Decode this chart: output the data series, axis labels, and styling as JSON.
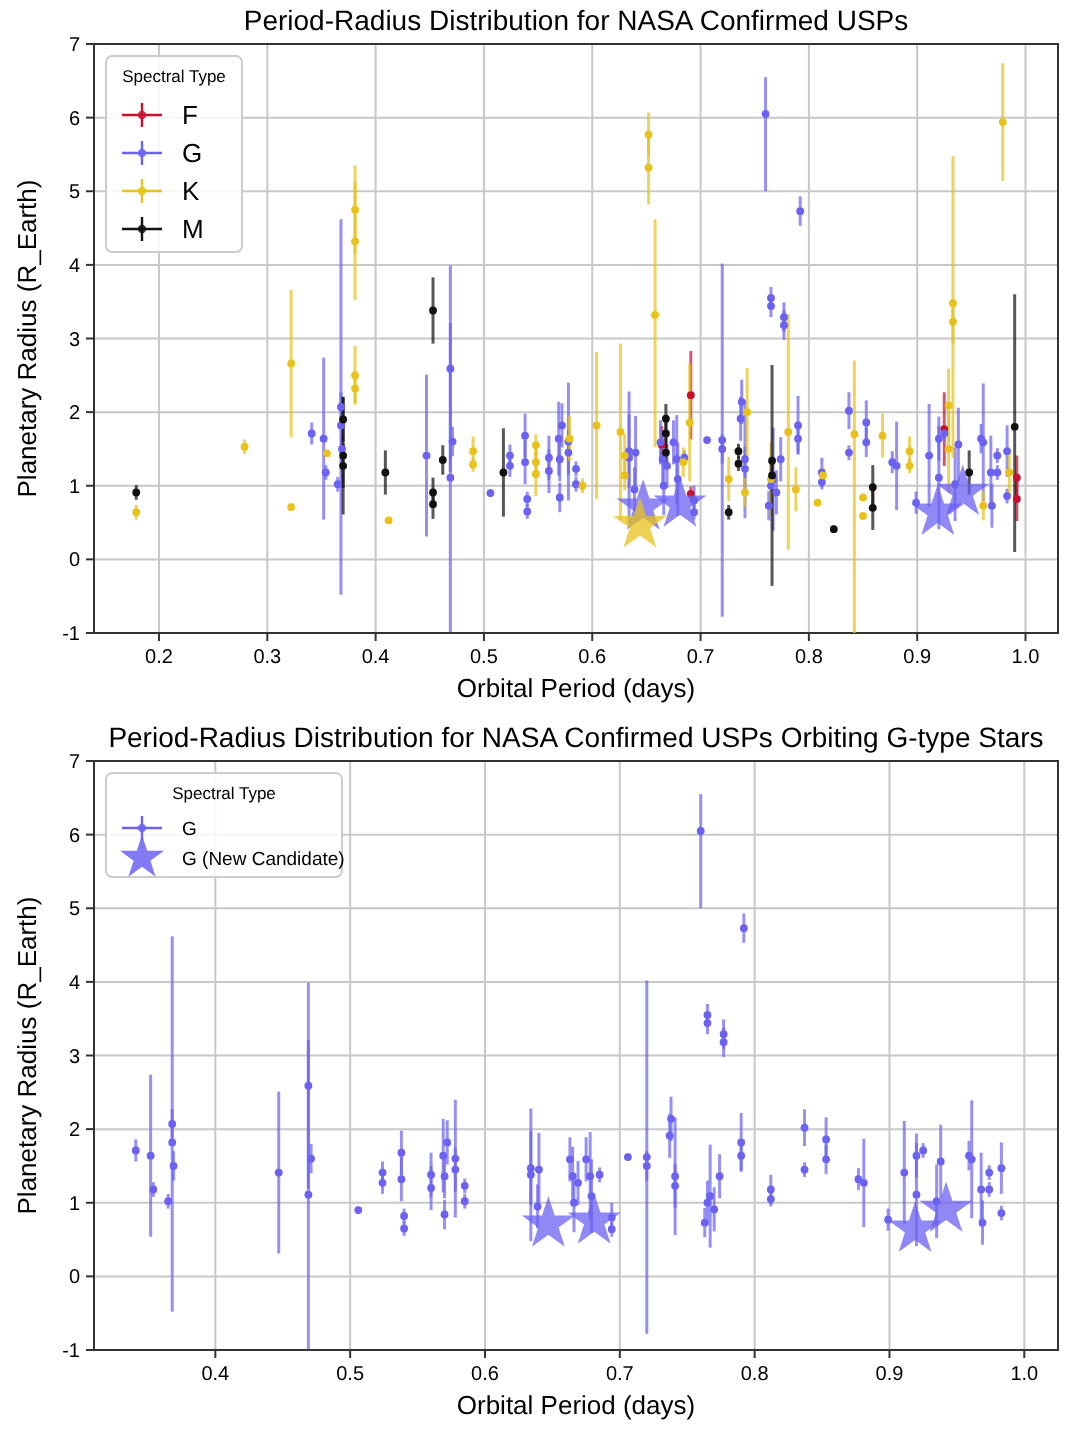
{
  "chart_data": [
    {
      "type": "scatter",
      "title": "Period-Radius Distribution for NASA Confirmed USPs",
      "xlabel": "Orbital Period (days)",
      "ylabel": "Planetary Radius (R_Earth)",
      "legend_title": "Spectral Type",
      "legend": "top left",
      "grid": true,
      "xlim": [
        0.14,
        1.03
      ],
      "xticks": [
        0.2,
        0.3,
        0.4,
        0.5,
        0.6,
        0.7,
        0.8,
        0.9,
        {
          "value": 1.0,
          "label": "1.0"
        }
      ],
      "ylim": [
        -1,
        7
      ],
      "yticks": [
        -1,
        0,
        1,
        2,
        3,
        4,
        5,
        6,
        7
      ],
      "series": [
        {
          "name": "F",
          "color": "#c8102e",
          "marker": "circle",
          "x": [
            0.664,
            0.691,
            0.691,
            0.925,
            0.992,
            0.992
          ],
          "values": [
            1.56,
            2.23,
            0.89,
            1.77,
            1.11,
            0.82
          ],
          "errors": [
            0.25,
            0.6,
            0.1,
            0.5,
            0.3,
            0.3
          ]
        },
        {
          "name": "G",
          "color": "#6b62f2",
          "marker": "circle",
          "x": [
            0.341,
            0.352,
            0.354,
            0.365,
            0.368,
            0.368,
            0.369,
            0.447,
            0.469,
            0.469,
            0.471,
            0.506,
            0.524,
            0.524,
            0.538,
            0.538,
            0.54,
            0.54,
            0.56,
            0.56,
            0.569,
            0.57,
            0.57,
            0.572,
            0.578,
            0.578,
            0.585,
            0.585,
            0.634,
            0.634,
            0.639,
            0.64,
            0.663,
            0.665,
            0.666,
            0.669,
            0.675,
            0.678,
            0.679,
            0.685,
            0.694,
            0.694,
            0.706,
            0.72,
            0.72,
            0.737,
            0.738,
            0.741,
            0.741,
            0.76,
            0.765,
            0.765,
            0.763,
            0.765,
            0.767,
            0.77,
            0.774,
            0.777,
            0.777,
            0.79,
            0.79,
            0.792,
            0.812,
            0.812,
            0.837,
            0.837,
            0.853,
            0.853,
            0.877,
            0.881,
            0.899,
            0.911,
            0.92,
            0.92,
            0.925,
            0.935,
            0.938,
            0.959,
            0.961,
            0.968,
            0.969,
            0.974,
            0.974,
            0.983,
            0.983
          ],
          "values": [
            1.71,
            1.64,
            1.18,
            1.02,
            1.82,
            2.07,
            1.5,
            1.41,
            2.59,
            1.11,
            1.6,
            0.9,
            1.41,
            1.27,
            1.68,
            1.32,
            0.82,
            0.65,
            1.38,
            1.2,
            1.64,
            1.36,
            0.84,
            1.82,
            1.45,
            1.6,
            1.23,
            1.02,
            1.38,
            1.47,
            0.95,
            1.45,
            1.59,
            1.36,
            1.0,
            1.27,
            1.59,
            1.36,
            1.09,
            1.38,
            0.8,
            0.64,
            1.62,
            1.62,
            1.5,
            1.91,
            2.14,
            1.36,
            1.23,
            6.05,
            3.55,
            3.44,
            0.73,
            1.0,
            1.09,
            0.91,
            1.36,
            3.29,
            3.18,
            1.82,
            1.64,
            4.73,
            1.18,
            1.05,
            2.02,
            1.45,
            1.86,
            1.59,
            1.32,
            1.27,
            0.77,
            1.41,
            1.64,
            1.11,
            1.71,
            1.02,
            1.56,
            1.64,
            1.59,
            1.18,
            0.73,
            1.41,
            1.18,
            1.47,
            0.86
          ],
          "errors": [
            0.15,
            1.1,
            0.1,
            0.1,
            [
              -0.48,
              4.62
            ],
            0.2,
            0.2,
            1.1,
            1.4,
            2.1,
            0.2,
            0.05,
            0.15,
            0.15,
            0.3,
            0.3,
            0.1,
            0.1,
            0.3,
            0.3,
            0.5,
            0.3,
            0.2,
            0.3,
            0.3,
            0.8,
            0.1,
            0.1,
            0.9,
            0.5,
            0.3,
            0.5,
            0.3,
            0.4,
            0.4,
            0.3,
            0.3,
            0.6,
            0.5,
            0.1,
            0.2,
            0.1,
            0.05,
            2.4,
            0.2,
            0.3,
            0.3,
            0.8,
            0.3,
            [
              5.0,
              6.55
            ],
            0.15,
            0.15,
            0.2,
            0.3,
            0.7,
            0.3,
            0.3,
            0.2,
            0.2,
            0.4,
            0.2,
            0.2,
            0.2,
            0.1,
            0.25,
            0.1,
            0.3,
            0.2,
            0.15,
            0.6,
            0.15,
            0.7,
            0.3,
            0.7,
            0.1,
            0.5,
            0.5,
            0.2,
            0.8,
            0.5,
            0.3,
            0.1,
            0.1,
            0.35,
            0.1
          ]
        },
        {
          "name": "K",
          "color": "#e8c11a",
          "marker": "circle",
          "x": [
            0.179,
            0.279,
            0.322,
            0.322,
            0.355,
            0.381,
            0.381,
            0.381,
            0.381,
            0.412,
            0.49,
            0.49,
            0.548,
            0.548,
            0.548,
            0.579,
            0.591,
            0.604,
            0.626,
            0.63,
            0.63,
            0.652,
            0.652,
            0.658,
            0.684,
            0.69,
            0.726,
            0.741,
            0.743,
            0.765,
            0.781,
            0.788,
            0.808,
            0.813,
            0.842,
            0.85,
            0.85,
            0.868,
            0.893,
            0.893,
            0.929,
            0.929,
            0.933,
            0.933,
            0.961,
            0.979,
            0.985
          ],
          "values": [
            0.64,
            1.53,
            2.66,
            0.71,
            1.44,
            4.75,
            4.32,
            2.5,
            2.32,
            0.53,
            1.47,
            1.29,
            1.55,
            1.32,
            1.16,
            1.64,
            1.0,
            1.82,
            1.73,
            1.41,
            1.14,
            5.77,
            5.32,
            3.32,
            1.32,
            1.86,
            1.09,
            0.91,
            2.0,
            1.09,
            1.73,
            0.95,
            0.77,
            1.14,
            1.7,
            0.59,
            0.84,
            1.68,
            1.47,
            1.27,
            2.09,
            1.5,
            3.48,
            3.23,
            0.73,
            5.94,
            1.18
          ],
          "errors": [
            0.1,
            0.1,
            1.0,
            0.05,
            0.05,
            0.6,
            0.8,
            0.4,
            0.2,
            0.05,
            0.2,
            0.1,
            0.15,
            0.2,
            0.3,
            0.3,
            0.1,
            1.0,
            1.2,
            0.3,
            0.2,
            0.3,
            0.5,
            [
              1.52,
              4.62
            ],
            0.2,
            0.8,
            0.3,
            0.2,
            0.6,
            0.5,
            1.6,
            0.3,
            0.05,
            0.1,
            [
              -1.0,
              2.7
            ],
            0.05,
            0.05,
            0.3,
            0.2,
            0.1,
            0.5,
            0.6,
            [
              1.38,
              5.48
            ],
            0.3,
            0.2,
            0.8,
            0.3
          ]
        },
        {
          "name": "M",
          "color": "#111111",
          "marker": "circle",
          "x": [
            0.179,
            0.37,
            0.37,
            0.37,
            0.409,
            0.453,
            0.453,
            0.453,
            0.462,
            0.518,
            0.668,
            0.668,
            0.668,
            0.726,
            0.735,
            0.735,
            0.766,
            0.766,
            0.823,
            0.859,
            0.859,
            0.948,
            0.99
          ],
          "values": [
            0.91,
            1.41,
            1.27,
            1.9,
            1.18,
            3.38,
            0.91,
            0.75,
            1.35,
            1.18,
            1.91,
            1.71,
            1.45,
            0.64,
            1.47,
            1.3,
            1.34,
            1.14,
            0.41,
            0.98,
            0.7,
            1.18,
            1.8
          ],
          "errors": [
            0.1,
            0.8,
            0.3,
            0.3,
            0.3,
            0.45,
            0.2,
            0.2,
            0.2,
            0.6,
            0.2,
            0.2,
            0.2,
            0.1,
            0.1,
            0.1,
            [
              -0.36,
              2.64
            ],
            0.2,
            0.05,
            0.3,
            0.3,
            0.3,
            [
              0.1,
              3.6
            ]
          ]
        },
        {
          "color": "#6b62f2",
          "marker": "star",
          "x": [
            0.647,
            0.681,
            0.919,
            0.942
          ],
          "values": [
            0.71,
            0.75,
            0.64,
            0.91
          ]
        },
        {
          "color": "#e8c11a",
          "marker": "star",
          "x": [
            0.644
          ],
          "values": [
            0.47
          ]
        }
      ]
    },
    {
      "type": "scatter",
      "title": "Period-Radius Distribution for NASA Confirmed USPs Orbiting G-type Stars",
      "xlabel": "Orbital Period (days)",
      "ylabel": "Planetary Radius (R_Earth)",
      "legend_title": "Spectral Type",
      "legend": "top left",
      "grid": true,
      "xlim": [
        0.31,
        1.025
      ],
      "xticks": [
        0.4,
        0.5,
        0.6,
        0.7,
        0.8,
        0.9,
        {
          "value": 1.0,
          "label": "1.0"
        }
      ],
      "ylim": [
        -1,
        7
      ],
      "yticks": [
        -1,
        0,
        1,
        2,
        3,
        4,
        5,
        6,
        7
      ],
      "series": [
        {
          "name": "G",
          "color": "#6b62f2",
          "marker": "circle",
          "x": [
            0.341,
            0.352,
            0.354,
            0.365,
            0.368,
            0.368,
            0.369,
            0.447,
            0.469,
            0.469,
            0.471,
            0.506,
            0.524,
            0.524,
            0.538,
            0.538,
            0.54,
            0.54,
            0.56,
            0.56,
            0.569,
            0.57,
            0.57,
            0.572,
            0.578,
            0.578,
            0.585,
            0.585,
            0.634,
            0.634,
            0.639,
            0.64,
            0.663,
            0.665,
            0.666,
            0.669,
            0.675,
            0.678,
            0.679,
            0.685,
            0.694,
            0.694,
            0.706,
            0.72,
            0.72,
            0.737,
            0.738,
            0.741,
            0.741,
            0.76,
            0.765,
            0.765,
            0.763,
            0.765,
            0.767,
            0.77,
            0.774,
            0.777,
            0.777,
            0.79,
            0.79,
            0.792,
            0.812,
            0.812,
            0.837,
            0.837,
            0.853,
            0.853,
            0.877,
            0.881,
            0.899,
            0.911,
            0.92,
            0.92,
            0.925,
            0.935,
            0.938,
            0.959,
            0.961,
            0.968,
            0.969,
            0.974,
            0.974,
            0.983,
            0.983
          ],
          "values": [
            1.71,
            1.64,
            1.18,
            1.02,
            1.82,
            2.07,
            1.5,
            1.41,
            2.59,
            1.11,
            1.6,
            0.9,
            1.41,
            1.27,
            1.68,
            1.32,
            0.82,
            0.65,
            1.38,
            1.2,
            1.64,
            1.36,
            0.84,
            1.82,
            1.45,
            1.6,
            1.23,
            1.02,
            1.38,
            1.47,
            0.95,
            1.45,
            1.59,
            1.36,
            1.0,
            1.27,
            1.59,
            1.36,
            1.09,
            1.38,
            0.8,
            0.64,
            1.62,
            1.62,
            1.5,
            1.91,
            2.14,
            1.36,
            1.23,
            6.05,
            3.55,
            3.44,
            0.73,
            1.0,
            1.09,
            0.91,
            1.36,
            3.29,
            3.18,
            1.82,
            1.64,
            4.73,
            1.18,
            1.05,
            2.02,
            1.45,
            1.86,
            1.59,
            1.32,
            1.27,
            0.77,
            1.41,
            1.64,
            1.11,
            1.71,
            1.02,
            1.56,
            1.64,
            1.59,
            1.18,
            0.73,
            1.41,
            1.18,
            1.47,
            0.86
          ],
          "errors": [
            0.15,
            1.1,
            0.1,
            0.1,
            [
              -0.48,
              4.62
            ],
            0.2,
            0.2,
            1.1,
            1.4,
            2.1,
            0.2,
            0.05,
            0.15,
            0.15,
            0.3,
            0.3,
            0.1,
            0.1,
            0.3,
            0.3,
            0.5,
            0.3,
            0.2,
            0.3,
            0.3,
            0.8,
            0.1,
            0.1,
            0.9,
            0.5,
            0.3,
            0.5,
            0.3,
            0.4,
            0.4,
            0.3,
            0.3,
            0.6,
            0.5,
            0.1,
            0.2,
            0.1,
            0.05,
            2.4,
            0.2,
            0.3,
            0.3,
            0.8,
            0.3,
            [
              5.0,
              6.55
            ],
            0.15,
            0.15,
            0.2,
            0.3,
            0.7,
            0.3,
            0.3,
            0.2,
            0.2,
            0.4,
            0.2,
            0.2,
            0.2,
            0.1,
            0.25,
            0.1,
            0.3,
            0.2,
            0.15,
            0.6,
            0.15,
            0.7,
            0.3,
            0.7,
            0.1,
            0.5,
            0.5,
            0.2,
            0.8,
            0.5,
            0.3,
            0.1,
            0.1,
            0.35,
            0.1
          ]
        },
        {
          "name": "G (New Candidate)",
          "color": "#6b62f2",
          "marker": "star",
          "x": [
            0.647,
            0.681,
            0.919,
            0.942
          ],
          "values": [
            0.71,
            0.75,
            0.64,
            0.91
          ]
        }
      ]
    }
  ]
}
